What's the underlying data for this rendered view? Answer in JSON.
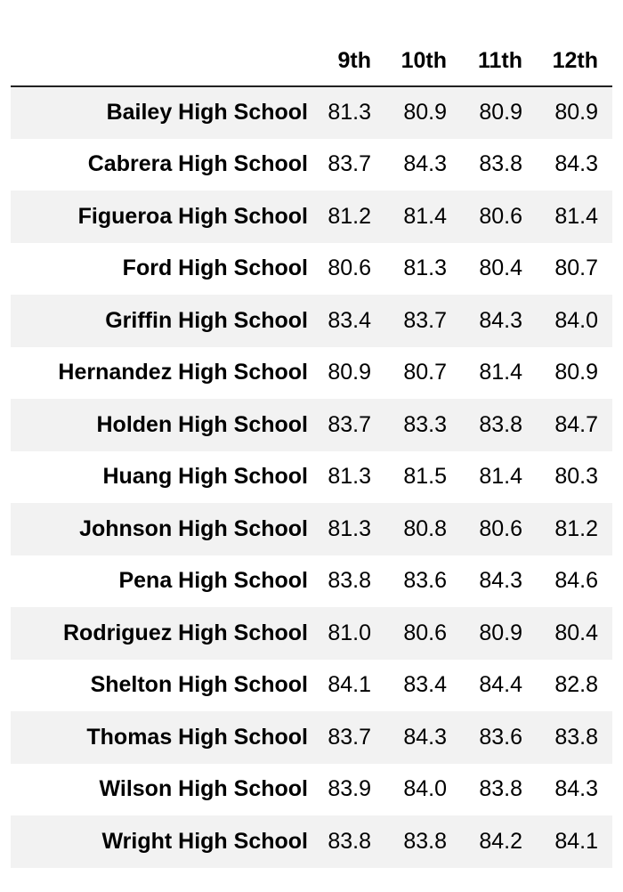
{
  "table": {
    "index_header": "",
    "columns": [
      "9th",
      "10th",
      "11th",
      "12th"
    ],
    "rows": [
      {
        "school": "Bailey High School",
        "values": [
          "81.3",
          "80.9",
          "80.9",
          "80.9"
        ]
      },
      {
        "school": "Cabrera High School",
        "values": [
          "83.7",
          "84.3",
          "83.8",
          "84.3"
        ]
      },
      {
        "school": "Figueroa High School",
        "values": [
          "81.2",
          "81.4",
          "80.6",
          "81.4"
        ]
      },
      {
        "school": "Ford High School",
        "values": [
          "80.6",
          "81.3",
          "80.4",
          "80.7"
        ]
      },
      {
        "school": "Griffin High School",
        "values": [
          "83.4",
          "83.7",
          "84.3",
          "84.0"
        ]
      },
      {
        "school": "Hernandez High School",
        "values": [
          "80.9",
          "80.7",
          "81.4",
          "80.9"
        ]
      },
      {
        "school": "Holden High School",
        "values": [
          "83.7",
          "83.3",
          "83.8",
          "84.7"
        ]
      },
      {
        "school": "Huang High School",
        "values": [
          "81.3",
          "81.5",
          "81.4",
          "80.3"
        ]
      },
      {
        "school": "Johnson High School",
        "values": [
          "81.3",
          "80.8",
          "80.6",
          "81.2"
        ]
      },
      {
        "school": "Pena High School",
        "values": [
          "83.8",
          "83.6",
          "84.3",
          "84.6"
        ]
      },
      {
        "school": "Rodriguez High School",
        "values": [
          "81.0",
          "80.6",
          "80.9",
          "80.4"
        ]
      },
      {
        "school": "Shelton High School",
        "values": [
          "84.1",
          "83.4",
          "84.4",
          "82.8"
        ]
      },
      {
        "school": "Thomas High School",
        "values": [
          "83.7",
          "84.3",
          "83.6",
          "83.8"
        ]
      },
      {
        "school": "Wilson High School",
        "values": [
          "83.9",
          "84.0",
          "83.8",
          "84.3"
        ]
      },
      {
        "school": "Wright High School",
        "values": [
          "83.8",
          "83.8",
          "84.2",
          "84.1"
        ]
      }
    ]
  }
}
